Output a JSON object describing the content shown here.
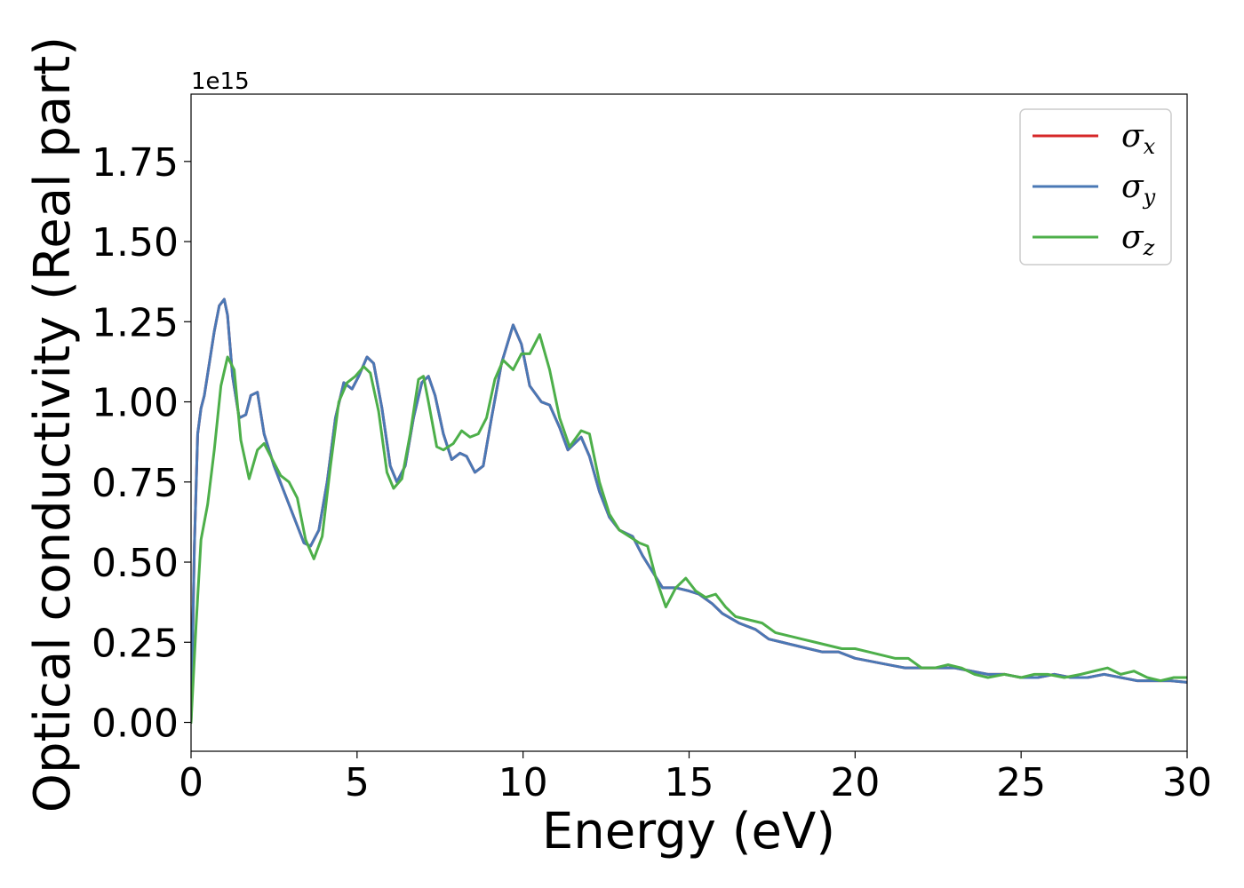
{
  "chart_data": {
    "type": "line",
    "title": "",
    "xlabel": "Energy (eV)",
    "ylabel": "Optical conductivity (Real part)",
    "y_offset_label": "1e15",
    "xlim": [
      0,
      30
    ],
    "ylim": [
      -0.09,
      1.96
    ],
    "x_ticks": [
      0,
      5,
      10,
      15,
      20,
      25,
      30
    ],
    "x_tick_labels": [
      "0",
      "5",
      "10",
      "15",
      "20",
      "25",
      "30"
    ],
    "y_ticks": [
      0,
      0.25,
      0.5,
      0.75,
      1.0,
      1.25,
      1.5,
      1.75
    ],
    "y_tick_labels": [
      "0.00",
      "0.25",
      "0.50",
      "0.75",
      "1.00",
      "1.25",
      "1.50",
      "1.75"
    ],
    "grid": false,
    "legend_position": "top-right",
    "series": [
      {
        "name": "σx",
        "symbol": "σ",
        "subscript": "x",
        "color": "#d62728",
        "x": [
          0,
          0.1,
          0.2,
          0.3,
          0.4,
          0.55,
          0.7,
          0.85,
          1.0,
          1.1,
          1.25,
          1.45,
          1.65,
          1.8,
          2.0,
          2.2,
          2.5,
          2.8,
          3.1,
          3.4,
          3.6,
          3.85,
          4.1,
          4.35,
          4.6,
          4.85,
          5.05,
          5.3,
          5.5,
          5.75,
          6.0,
          6.2,
          6.45,
          6.7,
          6.95,
          7.15,
          7.35,
          7.6,
          7.85,
          8.1,
          8.3,
          8.55,
          8.8,
          9.05,
          9.35,
          9.7,
          9.95,
          10.2,
          10.55,
          10.8,
          11.1,
          11.35,
          11.75,
          12.0,
          12.3,
          12.6,
          12.9,
          13.3,
          13.6,
          13.9,
          14.2,
          14.6,
          15.0,
          15.3,
          15.7,
          16.0,
          16.5,
          17.0,
          17.4,
          17.8,
          18.2,
          18.6,
          19.0,
          19.5,
          20.0,
          20.5,
          21.0,
          21.5,
          22.0,
          22.5,
          23.0,
          23.5,
          24.0,
          24.5,
          25.0,
          25.5,
          26.0,
          26.5,
          27.0,
          27.5,
          28.0,
          28.5,
          29.0,
          29.5,
          30.0
        ],
        "values": [
          0.0,
          0.55,
          0.9,
          0.98,
          1.02,
          1.12,
          1.22,
          1.3,
          1.32,
          1.27,
          1.08,
          0.95,
          0.96,
          1.02,
          1.03,
          0.9,
          0.8,
          0.72,
          0.64,
          0.56,
          0.55,
          0.6,
          0.75,
          0.95,
          1.06,
          1.04,
          1.08,
          1.14,
          1.12,
          0.98,
          0.8,
          0.75,
          0.8,
          0.95,
          1.06,
          1.08,
          1.02,
          0.9,
          0.82,
          0.84,
          0.83,
          0.78,
          0.8,
          0.95,
          1.12,
          1.24,
          1.18,
          1.05,
          1.0,
          0.99,
          0.92,
          0.85,
          0.89,
          0.83,
          0.72,
          0.64,
          0.6,
          0.58,
          0.52,
          0.47,
          0.42,
          0.42,
          0.41,
          0.4,
          0.37,
          0.34,
          0.31,
          0.29,
          0.26,
          0.25,
          0.24,
          0.23,
          0.22,
          0.22,
          0.2,
          0.19,
          0.18,
          0.17,
          0.17,
          0.17,
          0.17,
          0.16,
          0.15,
          0.15,
          0.14,
          0.14,
          0.15,
          0.14,
          0.14,
          0.15,
          0.14,
          0.13,
          0.13,
          0.13,
          0.125
        ]
      },
      {
        "name": "σy",
        "symbol": "σ",
        "subscript": "y",
        "color": "#4a78b5",
        "x": [
          0,
          0.1,
          0.2,
          0.3,
          0.4,
          0.55,
          0.7,
          0.85,
          1.0,
          1.1,
          1.25,
          1.45,
          1.65,
          1.8,
          2.0,
          2.2,
          2.5,
          2.8,
          3.1,
          3.4,
          3.6,
          3.85,
          4.1,
          4.35,
          4.6,
          4.85,
          5.05,
          5.3,
          5.5,
          5.75,
          6.0,
          6.2,
          6.45,
          6.7,
          6.95,
          7.15,
          7.35,
          7.6,
          7.85,
          8.1,
          8.3,
          8.55,
          8.8,
          9.05,
          9.35,
          9.7,
          9.95,
          10.2,
          10.55,
          10.8,
          11.1,
          11.35,
          11.75,
          12.0,
          12.3,
          12.6,
          12.9,
          13.3,
          13.6,
          13.9,
          14.2,
          14.6,
          15.0,
          15.3,
          15.7,
          16.0,
          16.5,
          17.0,
          17.4,
          17.8,
          18.2,
          18.6,
          19.0,
          19.5,
          20.0,
          20.5,
          21.0,
          21.5,
          22.0,
          22.5,
          23.0,
          23.5,
          24.0,
          24.5,
          25.0,
          25.5,
          26.0,
          26.5,
          27.0,
          27.5,
          28.0,
          28.5,
          29.0,
          29.5,
          30.0
        ],
        "values": [
          0.0,
          0.55,
          0.9,
          0.98,
          1.02,
          1.12,
          1.22,
          1.3,
          1.32,
          1.27,
          1.08,
          0.95,
          0.96,
          1.02,
          1.03,
          0.9,
          0.8,
          0.72,
          0.64,
          0.56,
          0.55,
          0.6,
          0.75,
          0.95,
          1.06,
          1.04,
          1.08,
          1.14,
          1.12,
          0.98,
          0.8,
          0.75,
          0.8,
          0.95,
          1.06,
          1.08,
          1.02,
          0.9,
          0.82,
          0.84,
          0.83,
          0.78,
          0.8,
          0.95,
          1.12,
          1.24,
          1.18,
          1.05,
          1.0,
          0.99,
          0.92,
          0.85,
          0.89,
          0.83,
          0.72,
          0.64,
          0.6,
          0.58,
          0.52,
          0.47,
          0.42,
          0.42,
          0.41,
          0.4,
          0.37,
          0.34,
          0.31,
          0.29,
          0.26,
          0.25,
          0.24,
          0.23,
          0.22,
          0.22,
          0.2,
          0.19,
          0.18,
          0.17,
          0.17,
          0.17,
          0.17,
          0.16,
          0.15,
          0.15,
          0.14,
          0.14,
          0.15,
          0.14,
          0.14,
          0.15,
          0.14,
          0.13,
          0.13,
          0.13,
          0.125
        ]
      },
      {
        "name": "σz",
        "symbol": "σ",
        "subscript": "z",
        "color": "#4daf4a",
        "x": [
          0,
          0.15,
          0.3,
          0.5,
          0.7,
          0.9,
          1.1,
          1.3,
          1.5,
          1.75,
          2.0,
          2.2,
          2.45,
          2.7,
          2.95,
          3.2,
          3.45,
          3.7,
          3.95,
          4.2,
          4.45,
          4.7,
          4.95,
          5.2,
          5.4,
          5.65,
          5.9,
          6.1,
          6.35,
          6.6,
          6.85,
          7.0,
          7.15,
          7.4,
          7.6,
          7.9,
          8.15,
          8.4,
          8.65,
          8.9,
          9.15,
          9.4,
          9.7,
          9.95,
          10.2,
          10.5,
          10.8,
          11.1,
          11.4,
          11.75,
          12.0,
          12.3,
          12.6,
          12.9,
          13.2,
          13.5,
          13.75,
          14.0,
          14.3,
          14.6,
          14.9,
          15.2,
          15.5,
          15.8,
          16.1,
          16.4,
          16.8,
          17.2,
          17.6,
          18.0,
          18.4,
          18.8,
          19.2,
          19.6,
          20.0,
          20.4,
          20.8,
          21.2,
          21.6,
          22.0,
          22.4,
          22.8,
          23.2,
          23.6,
          24.0,
          24.5,
          25.0,
          25.4,
          25.8,
          26.3,
          26.8,
          27.2,
          27.6,
          28.0,
          28.4,
          28.8,
          29.2,
          29.6,
          30.0
        ],
        "values": [
          0.0,
          0.3,
          0.57,
          0.68,
          0.85,
          1.05,
          1.14,
          1.1,
          0.88,
          0.76,
          0.85,
          0.87,
          0.82,
          0.77,
          0.75,
          0.7,
          0.57,
          0.51,
          0.58,
          0.8,
          1.0,
          1.06,
          1.08,
          1.11,
          1.09,
          0.97,
          0.78,
          0.73,
          0.76,
          0.9,
          1.07,
          1.08,
          1.0,
          0.86,
          0.85,
          0.87,
          0.91,
          0.89,
          0.9,
          0.95,
          1.07,
          1.13,
          1.1,
          1.15,
          1.15,
          1.21,
          1.1,
          0.95,
          0.86,
          0.91,
          0.9,
          0.75,
          0.65,
          0.6,
          0.58,
          0.56,
          0.55,
          0.45,
          0.36,
          0.42,
          0.45,
          0.41,
          0.39,
          0.4,
          0.36,
          0.33,
          0.32,
          0.31,
          0.28,
          0.27,
          0.26,
          0.25,
          0.24,
          0.23,
          0.23,
          0.22,
          0.21,
          0.2,
          0.2,
          0.17,
          0.17,
          0.18,
          0.17,
          0.15,
          0.14,
          0.15,
          0.14,
          0.15,
          0.15,
          0.14,
          0.15,
          0.16,
          0.17,
          0.15,
          0.16,
          0.14,
          0.13,
          0.14,
          0.14
        ]
      }
    ]
  }
}
